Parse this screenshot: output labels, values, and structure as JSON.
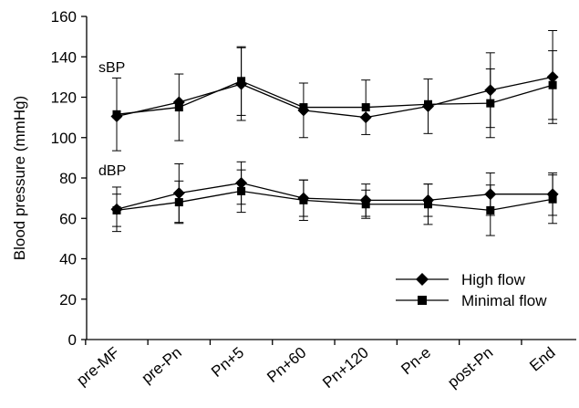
{
  "chart_data": {
    "type": "line",
    "categories": [
      "pre-MF",
      "pre-Pn",
      "Pn+5",
      "Pn+60",
      "Pn+120",
      "Pn-e",
      "post-Pn",
      "End"
    ],
    "ylabel": "Blood pressure (mmHg)",
    "xlabel": "",
    "ylim": [
      0,
      160
    ],
    "yticks": [
      0,
      20,
      40,
      60,
      80,
      100,
      120,
      140,
      160
    ],
    "grid": false,
    "legend_position": "bottom-right",
    "annotations": [
      "sBP",
      "dBP"
    ],
    "series": [
      {
        "name": "High flow",
        "marker": "diamond",
        "group": "sBP",
        "values": [
          110.5,
          117.5,
          126.5,
          113.5,
          110,
          115.5,
          123.5,
          130
        ],
        "error": [
          null,
          null,
          18,
          13.5,
          null,
          13.5,
          18.5,
          23
        ]
      },
      {
        "name": "Minimal flow",
        "marker": "square",
        "group": "sBP",
        "values": [
          111.5,
          115,
          128,
          115,
          115,
          116.5,
          117,
          126
        ],
        "error": [
          18,
          16.5,
          17,
          null,
          13.5,
          null,
          17,
          17
        ]
      },
      {
        "name": "High flow",
        "marker": "diamond",
        "group": "dBP",
        "values": [
          64.5,
          72.5,
          77.5,
          70,
          69,
          69,
          72,
          72
        ],
        "error": [
          11,
          14.5,
          10.5,
          9,
          8,
          8,
          10.5,
          10.5
        ]
      },
      {
        "name": "Minimal flow",
        "marker": "square",
        "group": "dBP",
        "values": [
          64,
          68,
          73.5,
          69,
          67,
          67,
          64,
          69.5
        ],
        "error": [
          8,
          10.5,
          10.5,
          10,
          7,
          10,
          12.5,
          12
        ]
      }
    ],
    "legend": [
      {
        "label": "High flow",
        "marker": "diamond"
      },
      {
        "label": "Minimal flow",
        "marker": "square"
      }
    ]
  }
}
